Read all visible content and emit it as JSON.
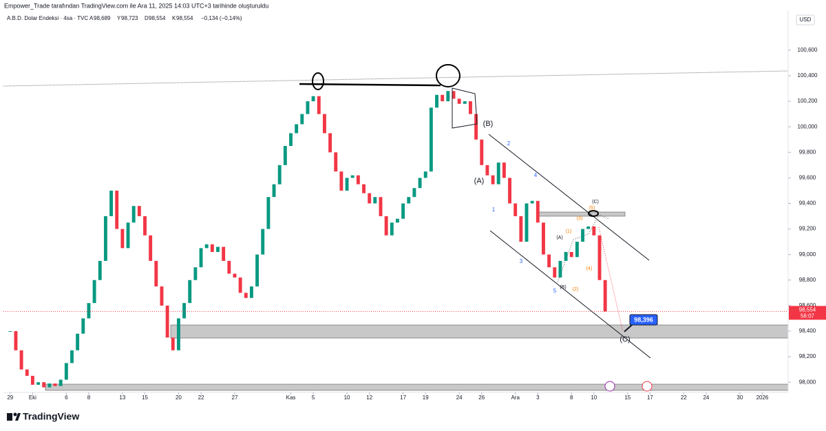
{
  "header": {
    "credit": "Empower_Trade tarafından TradingView.com ile Ara 11, 2025 14:03 UTC+3 tarihinde oluşturuldu",
    "symbol": "A.B.D. Dolar Endeksi · 4sa · TVC",
    "ohlc": [
      {
        "key": "A",
        "value": "98,689"
      },
      {
        "key": "Y",
        "value": "98,723"
      },
      {
        "key": "D",
        "value": "98,554"
      },
      {
        "key": "K",
        "value": "98,554"
      }
    ],
    "change": "−0,134 (−0,14%)"
  },
  "chart_data": {
    "type": "candlestick",
    "x": [
      0,
      0.5,
      1,
      1.5,
      2,
      2.5,
      3,
      3.5,
      4,
      4.5,
      5,
      5.5,
      6,
      6.5,
      7,
      7.5,
      8,
      8.5,
      9,
      9.5,
      10,
      10.5,
      11,
      11.5,
      12,
      12.5,
      13,
      13.5,
      14,
      14.5,
      15,
      15.5,
      16,
      16.5,
      17,
      17.5,
      18,
      18.5,
      19,
      19.5,
      20,
      20.5,
      21,
      21.5,
      22,
      22.5,
      23,
      23.5,
      24,
      24.5,
      25,
      25.5,
      26,
      26.5,
      27,
      27.5,
      28,
      28.5,
      29,
      29.5,
      30,
      30.5,
      31,
      31.5,
      32,
      32.5,
      33,
      33.5,
      34,
      34.5,
      35,
      35.5,
      36,
      36.5,
      37,
      37.5,
      38,
      38.5,
      39,
      39.5,
      40,
      40.5,
      41,
      41.5,
      42,
      42.5,
      43,
      43.5,
      44,
      44.5,
      45,
      45.5,
      46,
      46.5,
      47,
      47.5,
      48,
      48.5,
      49,
      49.5,
      50,
      50.5,
      51,
      51.5,
      52,
      52.5,
      53
    ],
    "values": [
      98.4,
      98.25,
      98.1,
      98.05,
      97.98,
      98.0,
      97.96,
      97.99,
      97.97,
      98.02,
      98.15,
      98.25,
      98.38,
      98.5,
      98.62,
      98.8,
      98.95,
      99.3,
      99.5,
      99.2,
      99.05,
      99.25,
      99.38,
      99.3,
      99.15,
      98.95,
      98.75,
      98.6,
      98.35,
      98.25,
      98.5,
      98.62,
      98.8,
      98.9,
      99.05,
      99.08,
      99.02,
      99.06,
      98.95,
      98.85,
      98.82,
      98.7,
      98.66,
      98.75,
      99.0,
      99.2,
      99.45,
      99.55,
      99.7,
      99.85,
      99.95,
      100.02,
      100.1,
      100.2,
      100.24,
      100.1,
      99.95,
      99.8,
      99.65,
      99.5,
      99.6,
      99.62,
      99.55,
      99.48,
      99.4,
      99.45,
      99.3,
      99.15,
      99.25,
      99.28,
      99.4,
      99.45,
      99.52,
      99.6,
      99.65,
      100.15,
      100.25,
      100.2,
      100.28,
      100.22,
      100.18,
      100.2,
      100.1,
      99.9,
      99.7,
      99.62,
      99.55,
      99.72,
      99.6,
      99.4,
      99.3,
      99.1,
      99.4,
      99.42,
      99.25,
      99.0,
      98.9,
      98.82,
      98.95,
      99.02,
      98.98,
      99.1,
      99.2,
      99.22,
      99.15,
      98.8,
      98.554
    ],
    "up_color": "#089981",
    "down_color": "#f23645",
    "xlim": [
      -0.6,
      69.3
    ],
    "xticks": [
      {
        "value": 0,
        "label": "29"
      },
      {
        "value": 2,
        "label": "Eki"
      },
      {
        "value": 5,
        "label": "6"
      },
      {
        "value": 7,
        "label": "8"
      },
      {
        "value": 10,
        "label": "13"
      },
      {
        "value": 12,
        "label": "15"
      },
      {
        "value": 15,
        "label": "20"
      },
      {
        "value": 17,
        "label": "22"
      },
      {
        "value": 20,
        "label": "27"
      },
      {
        "value": 25,
        "label": "Kas"
      },
      {
        "value": 27,
        "label": "5"
      },
      {
        "value": 30,
        "label": "10"
      },
      {
        "value": 32,
        "label": "12"
      },
      {
        "value": 35,
        "label": "17"
      },
      {
        "value": 37,
        "label": "19"
      },
      {
        "value": 40,
        "label": "24"
      },
      {
        "value": 42,
        "label": "26"
      },
      {
        "value": 45,
        "label": "Ara"
      },
      {
        "value": 47,
        "label": "3"
      },
      {
        "value": 50,
        "label": "8"
      },
      {
        "value": 52,
        "label": "10"
      },
      {
        "value": 55,
        "label": "15"
      },
      {
        "value": 57,
        "label": "17"
      },
      {
        "value": 60,
        "label": "22"
      },
      {
        "value": 62,
        "label": "24"
      },
      {
        "value": 65,
        "label": "30"
      },
      {
        "value": 67,
        "label": "2026"
      }
    ],
    "ylim": [
      97.92,
      100.885
    ],
    "yticks": [
      {
        "value": 98,
        "label": "98,000"
      },
      {
        "value": 98.2,
        "label": "98,200"
      },
      {
        "value": 98.4,
        "label": "98,400"
      },
      {
        "value": 98.6,
        "label": "98,600"
      },
      {
        "value": 98.8,
        "label": "98,800"
      },
      {
        "value": 99,
        "label": "99,000"
      },
      {
        "value": 99.2,
        "label": "99,200"
      },
      {
        "value": 99.4,
        "label": "99,400"
      },
      {
        "value": 99.6,
        "label": "99,600"
      },
      {
        "value": 99.8,
        "label": "99,800"
      },
      {
        "value": 100,
        "label": "100,000"
      },
      {
        "value": 100.2,
        "label": "100,200"
      },
      {
        "value": 100.4,
        "label": "100,400"
      },
      {
        "value": 100.6,
        "label": "100,600"
      }
    ],
    "currency": "USD",
    "last_price": {
      "value": 98.554,
      "label": "98,554"
    },
    "countdown": "56:07",
    "target": {
      "value": 98.396,
      "label": "98,396"
    },
    "annotations": [
      {
        "text": "(B)",
        "color": "#131722"
      },
      {
        "text": "(A)",
        "color": "#131722"
      },
      {
        "text": "1",
        "color": "#2962ff"
      },
      {
        "text": "2",
        "color": "#2962ff"
      },
      {
        "text": "3",
        "color": "#2962ff"
      },
      {
        "text": "4",
        "color": "#2962ff"
      },
      {
        "text": "5",
        "color": "#2962ff"
      },
      {
        "text": "(C)",
        "color": "#131722"
      },
      {
        "text": "(5)",
        "color": "#f57c00"
      },
      {
        "text": "(3)",
        "color": "#f57c00"
      },
      {
        "text": "(1)",
        "color": "#f57c00"
      },
      {
        "text": "(A)",
        "color": "#131722"
      },
      {
        "text": "(4)",
        "color": "#f57c00"
      },
      {
        "text": "(2)",
        "color": "#f57c00"
      },
      {
        "text": "(B)",
        "color": "#131722"
      },
      {
        "text": "(C)",
        "color": "#131722"
      }
    ]
  },
  "footer": {
    "logo": "TradingView"
  }
}
